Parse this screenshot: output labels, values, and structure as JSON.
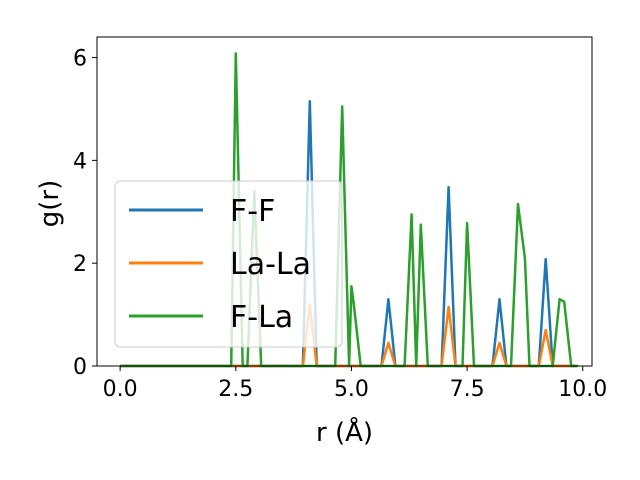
{
  "chart_data": {
    "type": "line",
    "xlabel": "r (Å)",
    "ylabel": "g(r)",
    "xlim": [
      -0.5,
      10.2
    ],
    "ylim": [
      0,
      6.4
    ],
    "xticks": [
      0.0,
      2.5,
      5.0,
      7.5,
      10.0
    ],
    "xtick_labels": [
      "0.0",
      "2.5",
      "5.0",
      "7.5",
      "10.0"
    ],
    "yticks": [
      0,
      2,
      4,
      6
    ],
    "ytick_labels": [
      "0",
      "2",
      "4",
      "6"
    ],
    "grid": false,
    "legend_position": "center-left",
    "series": [
      {
        "name": "F-F",
        "color": "#1f77b4",
        "x": [
          0.0,
          3.95,
          4.1,
          4.25,
          5.65,
          5.8,
          5.95,
          6.95,
          7.1,
          7.25,
          8.05,
          8.2,
          8.35,
          9.05,
          9.2,
          9.35,
          9.85
        ],
        "y": [
          0,
          0,
          5.15,
          0,
          0,
          1.3,
          0,
          0,
          3.48,
          0,
          0,
          1.3,
          0,
          0,
          2.08,
          0,
          0
        ]
      },
      {
        "name": "La-La",
        "color": "#ff7f0e",
        "x": [
          0.0,
          3.95,
          4.1,
          4.25,
          5.65,
          5.8,
          5.95,
          6.95,
          7.1,
          7.25,
          8.05,
          8.2,
          8.35,
          9.05,
          9.2,
          9.35,
          9.85
        ],
        "y": [
          0,
          0,
          1.2,
          0,
          0,
          0.45,
          0,
          0,
          1.15,
          0,
          0,
          0.45,
          0,
          0,
          0.7,
          0,
          0
        ]
      },
      {
        "name": "F-La",
        "color": "#2ca02c",
        "x": [
          0.0,
          2.4,
          2.5,
          2.65,
          2.75,
          2.9,
          3.05,
          4.65,
          4.8,
          4.95,
          5.0,
          5.05,
          5.2,
          6.15,
          6.3,
          6.4,
          6.5,
          6.65,
          7.4,
          7.5,
          7.65,
          8.45,
          8.6,
          8.75,
          8.85,
          9.35,
          9.5,
          9.6,
          9.75,
          9.9
        ],
        "y": [
          0,
          0,
          6.08,
          0,
          0,
          3.4,
          0,
          0,
          5.05,
          0,
          1.55,
          1.2,
          0,
          0,
          2.95,
          0,
          2.75,
          0,
          0,
          2.78,
          0,
          0,
          3.15,
          2.1,
          0,
          0,
          1.3,
          1.25,
          0,
          0
        ]
      }
    ]
  }
}
